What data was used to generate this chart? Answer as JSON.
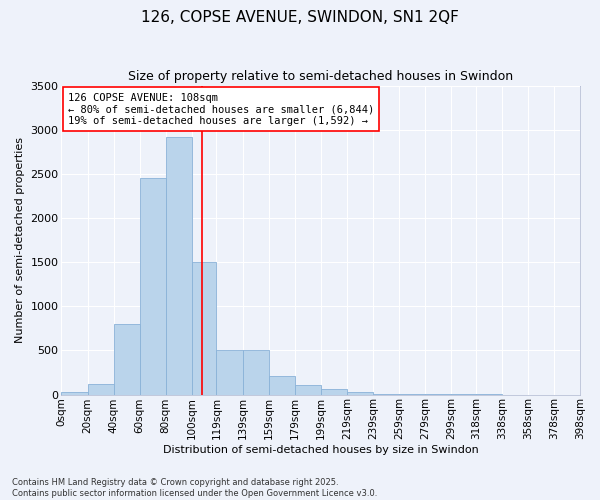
{
  "title": "126, COPSE AVENUE, SWINDON, SN1 2QF",
  "subtitle": "Size of property relative to semi-detached houses in Swindon",
  "xlabel": "Distribution of semi-detached houses by size in Swindon",
  "ylabel": "Number of semi-detached properties",
  "footnote": "Contains HM Land Registry data © Crown copyright and database right 2025.\nContains public sector information licensed under the Open Government Licence v3.0.",
  "bins": [
    "0sqm",
    "20sqm",
    "40sqm",
    "60sqm",
    "80sqm",
    "100sqm",
    "119sqm",
    "139sqm",
    "159sqm",
    "179sqm",
    "199sqm",
    "219sqm",
    "239sqm",
    "259sqm",
    "279sqm",
    "299sqm",
    "318sqm",
    "338sqm",
    "358sqm",
    "378sqm",
    "398sqm"
  ],
  "bin_edges": [
    0,
    20,
    40,
    60,
    80,
    100,
    119,
    139,
    159,
    179,
    199,
    219,
    239,
    259,
    279,
    299,
    318,
    338,
    358,
    378,
    398
  ],
  "values": [
    30,
    120,
    800,
    2450,
    2920,
    1500,
    510,
    510,
    215,
    110,
    60,
    25,
    10,
    5,
    2,
    1,
    1,
    0,
    0,
    0
  ],
  "bar_color": "#bad4eb",
  "bar_edge_color": "#8ab2d8",
  "property_line_x": 108,
  "property_line_color": "red",
  "annotation_text": "126 COPSE AVENUE: 108sqm\n← 80% of semi-detached houses are smaller (6,844)\n19% of semi-detached houses are larger (1,592) →",
  "annotation_box_color": "white",
  "annotation_box_edge_color": "red",
  "ylim": [
    0,
    3500
  ],
  "yticks": [
    0,
    500,
    1000,
    1500,
    2000,
    2500,
    3000,
    3500
  ],
  "background_color": "#eef2fa",
  "grid_color": "white",
  "title_fontsize": 11,
  "subtitle_fontsize": 9,
  "footnote_fontsize": 6,
  "ylabel_fontsize": 8,
  "xlabel_fontsize": 8
}
